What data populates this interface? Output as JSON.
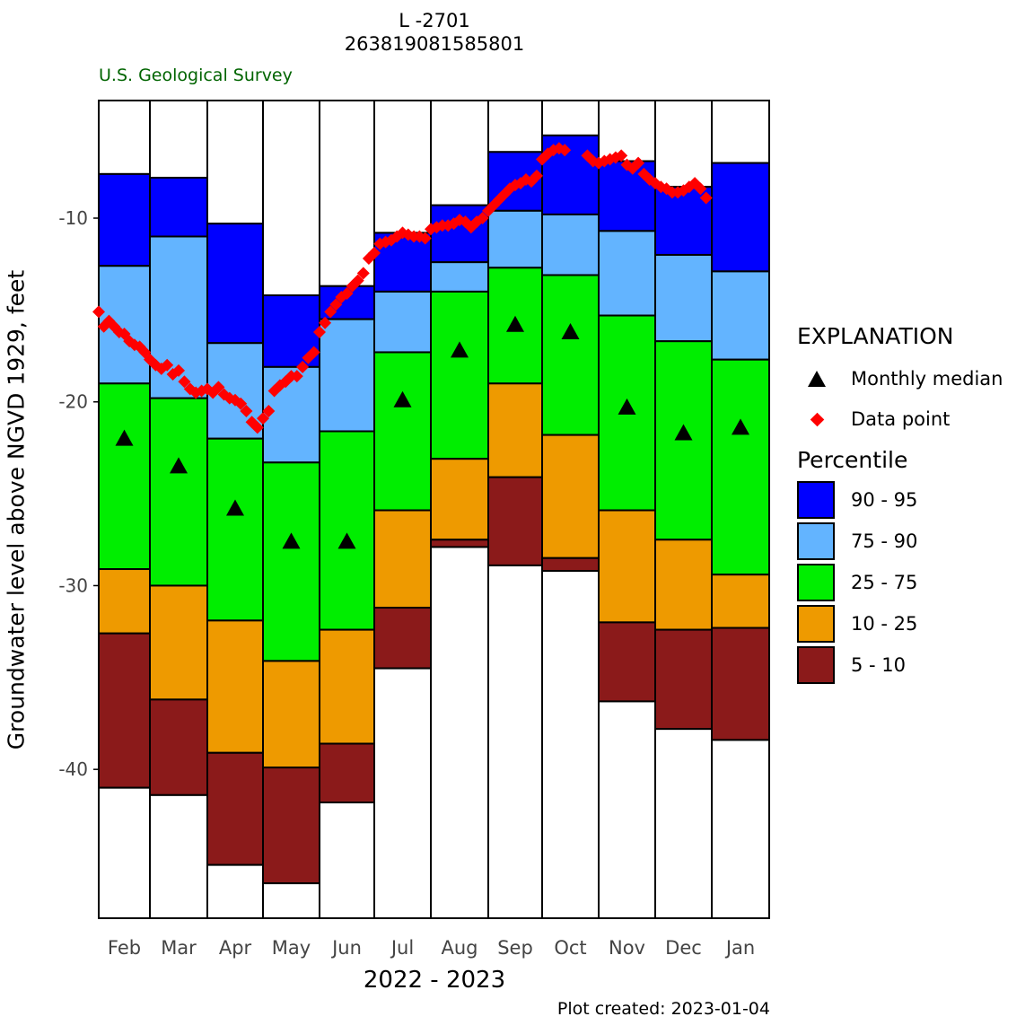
{
  "chart_data": {
    "type": "bar",
    "title": "L -2701",
    "subtitle": "263819081585801",
    "source": "U.S. Geological Survey",
    "xlabel": "2022 - 2023",
    "ylabel": "Groundwater level above NGVD 1929, feet",
    "footer": "Plot created: 2023-01-04",
    "ylim": [
      -48.1,
      -3.6
    ],
    "yticks": [
      -10,
      -20,
      -30,
      -40
    ],
    "categories": [
      "Feb",
      "Mar",
      "Apr",
      "May",
      "Jun",
      "Jul",
      "Aug",
      "Sep",
      "Oct",
      "Nov",
      "Dec",
      "Jan"
    ],
    "percentile_bounds": [
      {
        "month": "Feb",
        "p95": -7.6,
        "p90": -12.6,
        "p75": -19.0,
        "p25": -29.1,
        "p10": -32.6,
        "p5": -41.0
      },
      {
        "month": "Mar",
        "p95": -7.8,
        "p90": -11.0,
        "p75": -19.8,
        "p25": -30.0,
        "p10": -36.2,
        "p5": -41.4
      },
      {
        "month": "Apr",
        "p95": -10.3,
        "p90": -16.8,
        "p75": -22.0,
        "p25": -31.9,
        "p10": -39.1,
        "p5": -45.2
      },
      {
        "month": "May",
        "p95": -14.2,
        "p90": -18.1,
        "p75": -23.3,
        "p25": -34.1,
        "p10": -39.9,
        "p5": -46.2
      },
      {
        "month": "Jun",
        "p95": -13.7,
        "p90": -15.5,
        "p75": -21.6,
        "p25": -32.4,
        "p10": -38.6,
        "p5": -41.8
      },
      {
        "month": "Jul",
        "p95": -10.8,
        "p90": -14.0,
        "p75": -17.3,
        "p25": -25.9,
        "p10": -31.2,
        "p5": -34.5
      },
      {
        "month": "Aug",
        "p95": -9.3,
        "p90": -12.4,
        "p75": -14.0,
        "p25": -23.1,
        "p10": -27.5,
        "p5": -27.9
      },
      {
        "month": "Sep",
        "p95": -6.4,
        "p90": -9.6,
        "p75": -12.7,
        "p25": -19.0,
        "p10": -24.1,
        "p5": -28.9
      },
      {
        "month": "Oct",
        "p95": -5.5,
        "p90": -9.8,
        "p75": -13.1,
        "p25": -21.8,
        "p10": -28.5,
        "p5": -29.2
      },
      {
        "month": "Nov",
        "p95": -6.9,
        "p90": -10.7,
        "p75": -15.3,
        "p25": -25.9,
        "p10": -32.0,
        "p5": -36.3
      },
      {
        "month": "Dec",
        "p95": -8.3,
        "p90": -12.0,
        "p75": -16.7,
        "p25": -27.5,
        "p10": -32.4,
        "p5": -37.8
      },
      {
        "month": "Jan",
        "p95": -7.0,
        "p90": -12.9,
        "p75": -17.7,
        "p25": -29.4,
        "p10": -32.3,
        "p5": -38.4
      }
    ],
    "series": [
      {
        "name": "Monthly median",
        "values": [
          -22.0,
          -23.5,
          -25.8,
          -27.6,
          -27.6,
          -19.9,
          -17.2,
          -15.8,
          -16.2,
          -20.3,
          -21.7,
          -21.4
        ]
      },
      {
        "name": "Data point",
        "points": [
          {
            "x": 0.0,
            "y": -15.1
          },
          {
            "x": 0.1,
            "y": -15.9
          },
          {
            "x": 0.2,
            "y": -15.6
          },
          {
            "x": 0.3,
            "y": -15.9
          },
          {
            "x": 0.4,
            "y": -16.2
          },
          {
            "x": 0.5,
            "y": -16.3
          },
          {
            "x": 0.6,
            "y": -16.7
          },
          {
            "x": 0.7,
            "y": -16.9
          },
          {
            "x": 0.8,
            "y": -17.0
          },
          {
            "x": 0.9,
            "y": -17.3
          },
          {
            "x": 1.0,
            "y": -17.7
          },
          {
            "x": 1.1,
            "y": -18.0
          },
          {
            "x": 1.2,
            "y": -18.2
          },
          {
            "x": 1.3,
            "y": -18.0
          },
          {
            "x": 1.4,
            "y": -18.5
          },
          {
            "x": 1.5,
            "y": -18.3
          },
          {
            "x": 1.6,
            "y": -18.9
          },
          {
            "x": 1.7,
            "y": -19.3
          },
          {
            "x": 1.8,
            "y": -19.5
          },
          {
            "x": 1.9,
            "y": -19.4
          },
          {
            "x": 2.0,
            "y": -19.3
          },
          {
            "x": 2.1,
            "y": -19.5
          },
          {
            "x": 2.2,
            "y": -19.2
          },
          {
            "x": 2.3,
            "y": -19.6
          },
          {
            "x": 2.4,
            "y": -19.8
          },
          {
            "x": 2.5,
            "y": -19.9
          },
          {
            "x": 2.6,
            "y": -20.1
          },
          {
            "x": 2.7,
            "y": -20.5
          },
          {
            "x": 2.8,
            "y": -21.1
          },
          {
            "x": 2.9,
            "y": -21.4
          },
          {
            "x": 3.0,
            "y": -20.9
          },
          {
            "x": 3.1,
            "y": -20.5
          },
          {
            "x": 3.2,
            "y": -19.4
          },
          {
            "x": 3.3,
            "y": -19.1
          },
          {
            "x": 3.4,
            "y": -18.9
          },
          {
            "x": 3.5,
            "y": -18.6
          },
          {
            "x": 3.6,
            "y": -18.6
          },
          {
            "x": 3.7,
            "y": -18.1
          },
          {
            "x": 3.8,
            "y": -17.6
          },
          {
            "x": 3.9,
            "y": -17.3
          },
          {
            "x": 4.0,
            "y": -16.2
          },
          {
            "x": 4.1,
            "y": -15.7
          },
          {
            "x": 4.2,
            "y": -15.1
          },
          {
            "x": 4.3,
            "y": -14.7
          },
          {
            "x": 4.4,
            "y": -14.3
          },
          {
            "x": 4.5,
            "y": -14.1
          },
          {
            "x": 4.6,
            "y": -13.7
          },
          {
            "x": 4.7,
            "y": -13.4
          },
          {
            "x": 4.8,
            "y": -13.0
          },
          {
            "x": 4.9,
            "y": -12.2
          },
          {
            "x": 5.0,
            "y": -11.9
          },
          {
            "x": 5.1,
            "y": -11.4
          },
          {
            "x": 5.2,
            "y": -11.3
          },
          {
            "x": 5.3,
            "y": -11.2
          },
          {
            "x": 5.4,
            "y": -11.0
          },
          {
            "x": 5.5,
            "y": -10.8
          },
          {
            "x": 5.6,
            "y": -10.9
          },
          {
            "x": 5.7,
            "y": -11.0
          },
          {
            "x": 5.8,
            "y": -11.0
          },
          {
            "x": 5.9,
            "y": -11.1
          },
          {
            "x": 6.0,
            "y": -10.6
          },
          {
            "x": 6.1,
            "y": -10.5
          },
          {
            "x": 6.2,
            "y": -10.4
          },
          {
            "x": 6.3,
            "y": -10.4
          },
          {
            "x": 6.4,
            "y": -10.3
          },
          {
            "x": 6.5,
            "y": -10.1
          },
          {
            "x": 6.6,
            "y": -10.2
          },
          {
            "x": 6.7,
            "y": -10.5
          },
          {
            "x": 6.8,
            "y": -10.2
          },
          {
            "x": 6.9,
            "y": -10.0
          },
          {
            "x": 7.0,
            "y": -9.6
          },
          {
            "x": 7.1,
            "y": -9.3
          },
          {
            "x": 7.2,
            "y": -9.0
          },
          {
            "x": 7.3,
            "y": -8.7
          },
          {
            "x": 7.4,
            "y": -8.4
          },
          {
            "x": 7.5,
            "y": -8.2
          },
          {
            "x": 7.6,
            "y": -8.1
          },
          {
            "x": 7.7,
            "y": -7.9
          },
          {
            "x": 7.8,
            "y": -8.0
          },
          {
            "x": 7.9,
            "y": -7.7
          },
          {
            "x": 8.0,
            "y": -6.8
          },
          {
            "x": 8.1,
            "y": -6.5
          },
          {
            "x": 8.2,
            "y": -6.3
          },
          {
            "x": 8.3,
            "y": -6.2
          },
          {
            "x": 8.4,
            "y": -6.3
          },
          {
            "x": 8.8,
            "y": -6.6
          },
          {
            "x": 8.9,
            "y": -6.9
          },
          {
            "x": 9.0,
            "y": -7.0
          },
          {
            "x": 9.1,
            "y": -6.9
          },
          {
            "x": 9.2,
            "y": -6.8
          },
          {
            "x": 9.3,
            "y": -6.7
          },
          {
            "x": 9.4,
            "y": -6.6
          },
          {
            "x": 9.5,
            "y": -7.1
          },
          {
            "x": 9.6,
            "y": -7.3
          },
          {
            "x": 9.7,
            "y": -7.0
          },
          {
            "x": 9.8,
            "y": -7.6
          },
          {
            "x": 9.9,
            "y": -7.9
          },
          {
            "x": 10.0,
            "y": -8.1
          },
          {
            "x": 10.1,
            "y": -8.3
          },
          {
            "x": 10.2,
            "y": -8.4
          },
          {
            "x": 10.3,
            "y": -8.6
          },
          {
            "x": 10.4,
            "y": -8.6
          },
          {
            "x": 10.5,
            "y": -8.5
          },
          {
            "x": 10.6,
            "y": -8.3
          },
          {
            "x": 10.7,
            "y": -8.1
          },
          {
            "x": 10.8,
            "y": -8.4
          },
          {
            "x": 10.9,
            "y": -8.9
          }
        ]
      }
    ],
    "colors": {
      "p90_95": "#0000ff",
      "p75_90": "#63b4ff",
      "p25_75": "#00ee00",
      "p10_25": "#ee9a00",
      "p5_10": "#8b1a1a",
      "outside": "#ffffff",
      "data_point": "#ff0000",
      "median": "#000000",
      "agency": "#006400"
    },
    "legend": {
      "title": "EXPLANATION",
      "median_label": "Monthly median",
      "data_label": "Data point",
      "percentile_title": "Percentile",
      "percentile_labels": [
        "90 - 95",
        "75 - 90",
        "25 - 75",
        "10 - 25",
        "5 - 10"
      ],
      "placement": "right"
    }
  }
}
